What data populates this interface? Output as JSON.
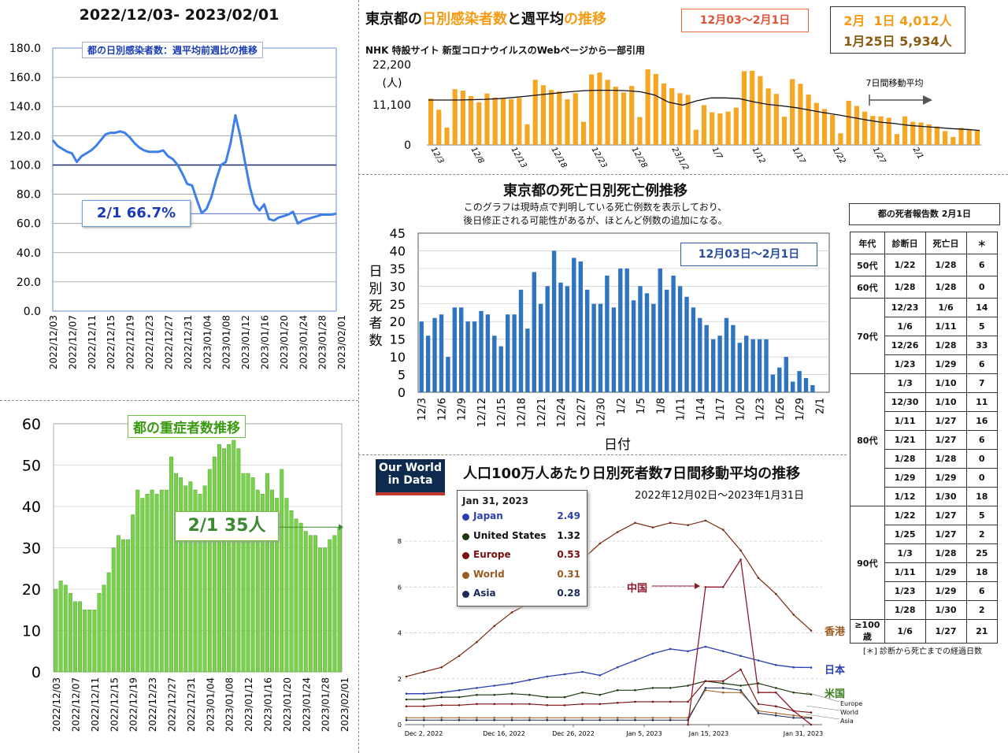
{
  "panels": {
    "ratio": {
      "title": "2022/12/03- 2023/02/01",
      "inner_title": "都の日別感染者数：週平均前週比の推移",
      "callout": "2/1 66.7%"
    },
    "severe": {
      "inner_title": "都の重症者数推移",
      "callout": "2/1 35人"
    },
    "cases": {
      "title_parts": [
        "東京都の",
        "日別感染者数",
        "と",
        "週平均",
        "の推移"
      ],
      "range_box": "12月03〜2月1日",
      "box_line1": "2月  1日 4,012人",
      "box_line2": "1月25日 5,934人",
      "subtitle": "NHK 特設サイト 新型コロナウイルスのWebページから一部引用",
      "y_unit": "(人)",
      "ma_label": "7日間移動平均"
    },
    "deaths": {
      "title": "東京都の死亡日別死亡例推移",
      "note1": "このグラフは現時点で判明している死亡例数を表示しており、",
      "note2": "後日修正される可能性があるが、ほとんど例数の追加になる。",
      "range_box": "12月03日〜2月1日",
      "ylabel": "日別死者数",
      "xlabel": "日付"
    },
    "owid": {
      "logo1": "Our World",
      "logo2": "in Data",
      "title": "人口100万人あたり日別死者数7日間移動平均の推移",
      "subtitle": "2022年12月02日〜2023年1月31日",
      "tooltip_date": "Jan 31, 2023",
      "china_label": "中国",
      "labels": {
        "hk": "香港",
        "jp": "日本",
        "us": "米国",
        "eu": "Europe",
        "world": "World",
        "asia": "Asia"
      }
    }
  },
  "colors": {
    "ratio_line": "#3f7fe8",
    "severe_bar": "#7ad14a",
    "severe_edge": "#3f9a20",
    "cases_bar": "#f5a623",
    "deaths_bar": "#2f74c0",
    "title_orange": "#f39c12",
    "hk": "#7b2a12",
    "china": "#8b1a2a",
    "japan": "#2a3fb0",
    "us": "#1e3a10",
    "europe": "#7a1010",
    "world": "#9a5a20",
    "asia": "#1a2a55"
  },
  "table": {
    "caption": "都の死者報告数 2月1日",
    "headers": [
      "年代",
      "診断日",
      "死亡日",
      "＊"
    ],
    "groups": [
      {
        "age": "50代",
        "rows": [
          [
            "1/22",
            "1/28",
            "6"
          ]
        ]
      },
      {
        "age": "60代",
        "rows": [
          [
            "1/28",
            "1/28",
            "0"
          ]
        ]
      },
      {
        "age": "70代",
        "rows": [
          [
            "12/23",
            "1/6",
            "14"
          ],
          [
            "1/6",
            "1/11",
            "5"
          ],
          [
            "12/26",
            "1/28",
            "33"
          ],
          [
            "1/23",
            "1/29",
            "6"
          ]
        ]
      },
      {
        "age": "80代",
        "rows": [
          [
            "1/3",
            "1/10",
            "7"
          ],
          [
            "12/30",
            "1/10",
            "11"
          ],
          [
            "1/11",
            "1/27",
            "16"
          ],
          [
            "1/21",
            "1/27",
            "6"
          ],
          [
            "1/28",
            "1/28",
            "0"
          ],
          [
            "1/29",
            "1/29",
            "0"
          ],
          [
            "1/12",
            "1/30",
            "18"
          ]
        ]
      },
      {
        "age": "90代",
        "rows": [
          [
            "1/22",
            "1/27",
            "5"
          ],
          [
            "1/25",
            "1/27",
            "2"
          ],
          [
            "1/3",
            "1/28",
            "25"
          ],
          [
            "1/11",
            "1/29",
            "18"
          ],
          [
            "1/23",
            "1/29",
            "6"
          ],
          [
            "1/28",
            "1/30",
            "2"
          ]
        ]
      },
      {
        "age": "≥100歳",
        "rows": [
          [
            "1/6",
            "1/27",
            "21"
          ]
        ]
      }
    ],
    "footnote": "[＊] 診断から死亡までの経過日数"
  },
  "chart_data": [
    {
      "id": "ratio",
      "type": "line",
      "title": "都の日別感染者数：週平均前週比の推移",
      "ylim": [
        0,
        180
      ],
      "yticks": [
        "0.0",
        "20.0",
        "40.0",
        "60.0",
        "80.0",
        "100.0",
        "120.0",
        "140.0",
        "160.0",
        "180.0"
      ],
      "reference_line": 100,
      "xticks": [
        "2022/12/03",
        "2022/12/07",
        "2022/12/11",
        "2022/12/15",
        "2022/12/19",
        "2022/12/23",
        "2022/12/27",
        "2022/12/31",
        "2023/01/04",
        "2023/01/08",
        "2023/01/12",
        "2023/01/16",
        "2023/01/20",
        "2023/01/24",
        "2023/01/28",
        "2023/02/01"
      ],
      "values": [
        117,
        113,
        111,
        109,
        108,
        102,
        106,
        108,
        110,
        113,
        117,
        121,
        122,
        122,
        123,
        122,
        119,
        115,
        112,
        110,
        109,
        109,
        109,
        110,
        106,
        104,
        100,
        94,
        87,
        86,
        76,
        67,
        70,
        78,
        90,
        100,
        102,
        115,
        134,
        120,
        102,
        85,
        73,
        69,
        73,
        63,
        62,
        64,
        65,
        66,
        68,
        60,
        62,
        63,
        64,
        65,
        66,
        66,
        66,
        66.7
      ]
    },
    {
      "id": "severe",
      "type": "bar",
      "title": "都の重症者数推移",
      "ylim": [
        0,
        60
      ],
      "yticks": [
        "0",
        "10",
        "20",
        "30",
        "40",
        "50",
        "60"
      ],
      "xticks": [
        "2022/12/03",
        "2022/12/07",
        "2022/12/11",
        "2022/12/15",
        "2022/12/19",
        "2022/12/23",
        "2022/12/27",
        "2022/12/31",
        "2023/01/04",
        "2023/01/08",
        "2023/01/12",
        "2023/01/16",
        "2023/01/20",
        "2023/01/24",
        "2023/01/28",
        "2023/02/01"
      ],
      "values": [
        20,
        22,
        21,
        19,
        17,
        17,
        15,
        15,
        15,
        19,
        21,
        24,
        30,
        33,
        32,
        32,
        38,
        44,
        42,
        43,
        44,
        43,
        44,
        44,
        52,
        48,
        47,
        45,
        46,
        44,
        43,
        45,
        49,
        52,
        55,
        54,
        55,
        56,
        54,
        48,
        48,
        47,
        44,
        43,
        48,
        44,
        42,
        49,
        42,
        39,
        37,
        36,
        34,
        33,
        33,
        30,
        30,
        32,
        33,
        35
      ]
    },
    {
      "id": "cases",
      "type": "bar",
      "title": "東京都の日別感染者数と週平均の推移",
      "ylim": [
        0,
        22200
      ],
      "yticks": [
        "0",
        "11,100",
        "22,200"
      ],
      "xticks": [
        "12/3",
        "12/8",
        "12/13",
        "12/18",
        "12/23",
        "12/28",
        "23/1/2",
        "1/7",
        "1/12",
        "1/17",
        "1/22",
        "1/27",
        "2/1"
      ],
      "values": [
        12800,
        9700,
        4800,
        15400,
        15000,
        13500,
        11800,
        14200,
        13100,
        13000,
        12600,
        13000,
        5700,
        18000,
        16500,
        15200,
        14800,
        12600,
        14300,
        6400,
        19500,
        20000,
        18000,
        16100,
        14500,
        16300,
        7700,
        20900,
        19600,
        17000,
        15700,
        14300,
        13800,
        4200,
        11000,
        9000,
        8700,
        9200,
        10300,
        20400,
        20500,
        19000,
        15600,
        14100,
        7800,
        18200,
        16900,
        13900,
        11600,
        9900,
        8300,
        3200,
        12200,
        10800,
        9200,
        8000,
        7900,
        7500,
        3000,
        7900,
        6400,
        6200,
        5700,
        5100,
        3800,
        2200,
        4700,
        4400,
        4012
      ],
      "moving_average": [
        12400,
        12400,
        12400,
        12500,
        12600,
        12800,
        13100,
        13500,
        13900,
        14300,
        14700,
        15000,
        15100,
        15100,
        15000,
        14700,
        13800,
        11800,
        11000,
        12200,
        13000,
        13000,
        12800,
        11900,
        11200,
        10800,
        10300,
        9600,
        8900,
        8300,
        7600,
        6900,
        6300,
        5900,
        5400,
        5100,
        4800,
        4500,
        4300,
        4000
      ]
    },
    {
      "id": "deaths",
      "type": "bar",
      "title": "東京都の死亡日別死亡例推移",
      "ylim": [
        0,
        45
      ],
      "yticks": [
        "0",
        "5",
        "10",
        "15",
        "20",
        "25",
        "30",
        "35",
        "40",
        "45"
      ],
      "ylabel": "日別死者数",
      "xlabel": "日付",
      "xticks": [
        "12/3",
        "12/6",
        "12/9",
        "12/12",
        "12/15",
        "12/18",
        "12/21",
        "12/24",
        "12/27",
        "12/30",
        "1/2",
        "1/5",
        "1/8",
        "1/11",
        "1/14",
        "1/17",
        "1/20",
        "1/23",
        "1/26",
        "1/29",
        "2/1"
      ],
      "values": [
        20,
        16,
        21,
        22,
        10,
        24,
        24,
        20,
        20,
        23,
        22,
        16,
        13,
        22,
        22,
        29,
        18,
        34,
        25,
        30,
        40,
        31,
        30,
        38,
        37,
        29,
        25,
        25,
        33,
        24,
        35,
        35,
        26,
        30,
        28,
        25,
        35,
        29,
        33,
        30,
        27,
        24,
        21,
        19,
        15,
        16,
        21,
        19,
        14,
        16,
        15,
        15,
        15,
        5,
        7,
        10,
        3,
        6,
        4,
        2,
        0,
        0
      ]
    },
    {
      "id": "owid",
      "type": "line",
      "title": "人口100万人あたり日別死者数7日間移動平均の推移",
      "ylim": [
        0,
        9
      ],
      "yticks": [
        "0",
        "2",
        "4",
        "6",
        "8"
      ],
      "xticks": [
        "Dec 2, 2022",
        "Dec 16, 2022",
        "Dec 26, 2022",
        "Jan 5, 2023",
        "Jan 15, 2023",
        "Jan 31, 2023"
      ],
      "series": [
        {
          "name": "Japan",
          "label": "Japan",
          "value": "2.49"
        },
        {
          "name": "United States",
          "label": "United States",
          "value": "1.32"
        },
        {
          "name": "Europe",
          "label": "Europe",
          "value": "0.53"
        },
        {
          "name": "World",
          "label": "World",
          "value": "0.31"
        },
        {
          "name": "Asia",
          "label": "Asia",
          "value": "0.28"
        }
      ],
      "lines": {
        "hk": [
          2.1,
          2.3,
          2.5,
          3.0,
          3.6,
          4.3,
          4.9,
          5.3,
          5.5,
          5.6,
          7.2,
          7.9,
          8.4,
          8.8,
          8.6,
          8.8,
          8.7,
          8.9,
          8.5,
          7.6,
          6.4,
          5.7,
          4.8,
          4.1
        ],
        "china": [
          0,
          0,
          0,
          0,
          0,
          0,
          0,
          0,
          0,
          0,
          0,
          0,
          0,
          0,
          0,
          0,
          0,
          6.0,
          6.0,
          7.2,
          1.4,
          1.4,
          0.6,
          0
        ],
        "jp": [
          1.35,
          1.35,
          1.4,
          1.5,
          1.6,
          1.7,
          1.8,
          1.95,
          2.1,
          2.2,
          2.3,
          2.15,
          2.5,
          2.8,
          3.1,
          3.3,
          3.2,
          3.4,
          3.2,
          3.0,
          2.8,
          2.6,
          2.5,
          2.49
        ],
        "us": [
          1.1,
          1.1,
          1.2,
          1.2,
          1.3,
          1.3,
          1.35,
          1.3,
          1.2,
          1.2,
          1.4,
          1.3,
          1.5,
          1.5,
          1.6,
          1.6,
          1.7,
          1.9,
          1.8,
          1.7,
          1.8,
          1.6,
          1.4,
          1.32
        ],
        "eu": [
          0.8,
          0.8,
          0.85,
          0.85,
          0.9,
          0.9,
          0.9,
          0.9,
          0.85,
          0.85,
          0.9,
          0.9,
          0.95,
          1.0,
          1.0,
          1.0,
          1.0,
          1.9,
          1.9,
          2.4,
          0.9,
          0.8,
          0.6,
          0.53
        ],
        "world": [
          0.3,
          0.3,
          0.3,
          0.3,
          0.3,
          0.3,
          0.3,
          0.3,
          0.3,
          0.3,
          0.3,
          0.3,
          0.3,
          0.3,
          0.3,
          0.3,
          0.3,
          1.5,
          1.4,
          1.4,
          0.6,
          0.5,
          0.4,
          0.31
        ],
        "asia": [
          0.2,
          0.2,
          0.2,
          0.2,
          0.2,
          0.2,
          0.2,
          0.2,
          0.2,
          0.2,
          0.2,
          0.2,
          0.2,
          0.2,
          0.2,
          0.2,
          0.2,
          1.6,
          1.6,
          1.5,
          0.5,
          0.4,
          0.3,
          0.28
        ]
      }
    }
  ]
}
